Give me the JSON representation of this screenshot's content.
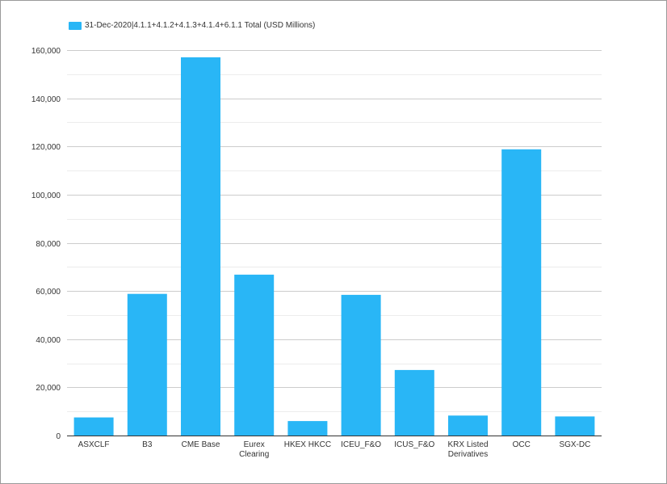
{
  "chart_data": {
    "type": "bar",
    "title": "",
    "xlabel": "",
    "ylabel": "",
    "categories": [
      "ASXCLF",
      "B3",
      "CME Base",
      "Eurex Clearing",
      "HKEX HKCC",
      "ICEU_F&O",
      "ICUS_F&O",
      "KRX Listed Derivatives",
      "OCC",
      "SGX-DC"
    ],
    "category_lines": [
      [
        "ASXCLF"
      ],
      [
        "B3"
      ],
      [
        "CME Base"
      ],
      [
        "Eurex",
        "Clearing"
      ],
      [
        "HKEX HKCC"
      ],
      [
        "ICEU_F&O"
      ],
      [
        "ICUS_F&O"
      ],
      [
        "KRX Listed",
        "Derivatives"
      ],
      [
        "OCC"
      ],
      [
        "SGX-DC"
      ]
    ],
    "series": [
      {
        "name": "31-Dec-2020|4.1.1+4.1.2+4.1.3+4.1.4+6.1.1 Total (USD Millions)",
        "values": [
          7500,
          58800,
          157000,
          66800,
          6000,
          58400,
          27200,
          8300,
          118800,
          7900
        ]
      }
    ],
    "ylim": [
      0,
      160000
    ],
    "yticks": [
      0,
      20000,
      40000,
      60000,
      80000,
      100000,
      120000,
      140000,
      160000
    ],
    "ytick_labels": [
      "0",
      "20,000",
      "40,000",
      "60,000",
      "80,000",
      "100,000",
      "120,000",
      "140,000",
      "160,000"
    ],
    "grid": true,
    "legend_position": "top-left",
    "colors": {
      "bar": "#29b6f6",
      "grid_major": "#cccccc",
      "grid_minor": "#ececec",
      "axis": "#333333",
      "text": "#333333"
    }
  }
}
